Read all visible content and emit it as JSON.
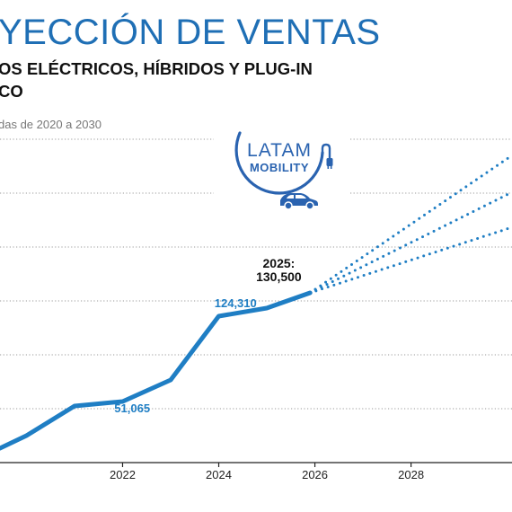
{
  "header": {
    "title": "YECCIÓN DE VENTAS",
    "subtitle": "OS ELÉCTRICOS, HÍBRIDOS Y PLUG-IN\nCO",
    "note": "das de 2020 a 2030"
  },
  "logo": {
    "line1": "LATAM",
    "line2": "MOBILITY",
    "color": "#2a63b0",
    "icons": [
      "plug-icon",
      "car-icon"
    ]
  },
  "colors": {
    "series": "#1f7ec4",
    "label": "#1f7ec4",
    "grid": "#9a9a9a",
    "axis": "#222222"
  },
  "chart_data": {
    "type": "line",
    "xlim": [
      2019.45,
      2030.1
    ],
    "ylim": [
      20000,
      200000
    ],
    "x_ticks": [
      "2022",
      "2024",
      "2026",
      "2028"
    ],
    "series": [
      {
        "kind": "actual",
        "x": [
          2019.45,
          2020,
          2021,
          2022,
          2023,
          2024,
          2025,
          2025.9
        ],
        "y": [
          28000,
          35000,
          51500,
          54000,
          66000,
          101500,
          106000,
          114500
        ]
      }
    ],
    "projections": [
      {
        "x": [
          2025.9,
          2030.1
        ],
        "y": [
          114500,
          191000
        ]
      },
      {
        "x": [
          2025.9,
          2030.1
        ],
        "y": [
          114500,
          170500
        ]
      },
      {
        "x": [
          2025.9,
          2030.1
        ],
        "y": [
          114500,
          151000
        ]
      }
    ],
    "annotations": [
      {
        "text": "124,310",
        "x": 2024.35,
        "y": 106500
      },
      {
        "text": "51,065",
        "x": 2022.2,
        "y": 48000
      },
      {
        "text": "2025:",
        "x": 2025.25,
        "y": 128500
      },
      {
        "text": "130,500",
        "x": 2025.25,
        "y": 121000
      }
    ]
  }
}
